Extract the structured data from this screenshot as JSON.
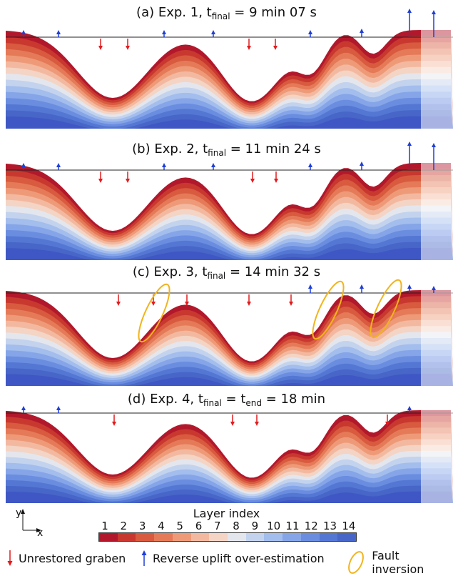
{
  "panels": [
    {
      "title_pre": "(a) Exp. 1, t",
      "title_sub": "final",
      "title_post": " = 9 min 07 s"
    },
    {
      "title_pre": "(b) Exp. 2, t",
      "title_sub": "final",
      "title_post": " = 11 min 24 s"
    },
    {
      "title_pre": "(c) Exp. 3, t",
      "title_sub": "final",
      "title_post": " = 14 min 32 s"
    },
    {
      "title_pre": "(d) Exp. 4, t",
      "title_sub": "final",
      "title_post": " = t",
      "title_sub2": "end",
      "title_post2": " = 18 min"
    }
  ],
  "axes": {
    "y_label": "y",
    "x_label": "x"
  },
  "colorbar": {
    "title": "Layer index",
    "ticks": [
      "1",
      "2",
      "3",
      "4",
      "5",
      "6",
      "7",
      "8",
      "9",
      "10",
      "11",
      "12",
      "13",
      "14"
    ],
    "colors": [
      "#b2182b",
      "#c8382f",
      "#d85a3f",
      "#e57a58",
      "#ee9a78",
      "#f3b9a0",
      "#f4d4c4",
      "#e4e6ee",
      "#c3d3ee",
      "#a3bded",
      "#85a5e8",
      "#6a8de0",
      "#5577d4",
      "#4766c8"
    ]
  },
  "legend": {
    "graben_label": "Unrestored graben",
    "uplift_label": "Reverse uplift over-estimation",
    "inversion_label": "Fault inversion",
    "graben_color": "#e31a1c",
    "uplift_color": "#1f3fd6",
    "inversion_color": "#f2b41c"
  }
}
